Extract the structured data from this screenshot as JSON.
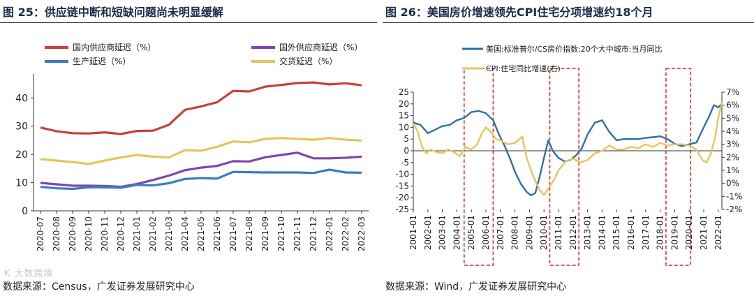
{
  "left": {
    "figure_title": "图  25：供应链中断和短缺问题尚未明显缓解",
    "source": "数据来源：Census，广发证券发展研究中心",
    "watermark": "K  大数跨境"
  },
  "right": {
    "figure_title": "图  26：美国房价增速领先CPI住宅分项增速约18个月",
    "source": "数据来源：Wind，广发证券发展研究中心"
  },
  "chart_data": [
    {
      "type": "line",
      "title": "",
      "categories": [
        "2020-07",
        "2020-08",
        "2020-09",
        "2020-10",
        "2020-11",
        "2020-12",
        "2021-01",
        "2021-02",
        "2021-03",
        "2021-04",
        "2021-05",
        "2021-06",
        "2021-07",
        "2021-08",
        "2021-09",
        "2021-10",
        "2021-11",
        "2021-12",
        "2022-01",
        "2022-02",
        "2022-03"
      ],
      "ylim": [
        0,
        47
      ],
      "yticks": [
        0,
        10,
        20,
        30,
        40
      ],
      "legend_position": "top",
      "series": [
        {
          "name": "国内供应商延迟（%）",
          "color": "#c8413b",
          "values": [
            29.5,
            28.2,
            27.5,
            27.4,
            27.8,
            27.2,
            28.3,
            28.4,
            30.5,
            35.8,
            37.0,
            38.5,
            42.5,
            42.3,
            44.0,
            44.6,
            45.3,
            45.5,
            44.8,
            45.2,
            44.5
          ]
        },
        {
          "name": "国外供应商延迟（%）",
          "color": "#7c48a8",
          "values": [
            9.9,
            9.4,
            8.9,
            8.9,
            8.8,
            8.5,
            9.5,
            10.9,
            12.5,
            14.4,
            15.3,
            15.9,
            17.6,
            17.5,
            19.0,
            19.8,
            20.6,
            18.6,
            18.6,
            18.8,
            19.2
          ]
        },
        {
          "name": "生产延迟（%）",
          "color": "#3b7cc0",
          "values": [
            8.5,
            8.0,
            7.8,
            8.3,
            8.3,
            8.2,
            9.2,
            9.0,
            9.8,
            11.3,
            11.6,
            11.4,
            13.8,
            13.7,
            13.6,
            13.6,
            13.6,
            13.4,
            14.6,
            13.6,
            13.5
          ]
        },
        {
          "name": "交货延迟（%）",
          "color": "#e6c55a",
          "values": [
            18.3,
            17.8,
            17.3,
            16.6,
            17.8,
            18.9,
            19.8,
            19.2,
            18.9,
            21.5,
            21.3,
            22.7,
            24.6,
            24.3,
            25.5,
            25.8,
            25.5,
            25.2,
            25.8,
            25.2,
            24.9
          ]
        }
      ]
    },
    {
      "type": "line",
      "title": "",
      "x_categories": [
        "2001-01",
        "2002-01",
        "2003-01",
        "2004-01",
        "2005-01",
        "2006-01",
        "2007-01",
        "2008-01",
        "2009-01",
        "2010-01",
        "2011-01",
        "2012-01",
        "2013-01",
        "2014-01",
        "2015-01",
        "2016-01",
        "2017-01",
        "2018-01",
        "2019-01",
        "2020-01",
        "2021-01",
        "2022-01"
      ],
      "x_domain": [
        2001.0,
        2022.25
      ],
      "y_left": {
        "ylim": [
          -25,
          25
        ],
        "ticks": [
          -25,
          -20,
          -15,
          -10,
          -5,
          0,
          5,
          10,
          15,
          20,
          25
        ]
      },
      "y_right": {
        "ylim": [
          -2,
          7
        ],
        "ticks": [
          "-2%",
          "-1%",
          "0%",
          "1%",
          "2%",
          "3%",
          "4%",
          "5%",
          "6%",
          "7%"
        ]
      },
      "legend_position": "top-left",
      "series": [
        {
          "name": "美国:标准普尔/CS房价指数:20个大中城市:当月同比",
          "axis": "left",
          "color": "#2f6fa6",
          "points": [
            [
              2001.0,
              12
            ],
            [
              2001.5,
              11
            ],
            [
              2002.0,
              7.5
            ],
            [
              2002.5,
              9
            ],
            [
              2003.0,
              10.5
            ],
            [
              2003.5,
              11
            ],
            [
              2004.0,
              13
            ],
            [
              2004.5,
              14
            ],
            [
              2005.0,
              16.5
            ],
            [
              2005.5,
              17
            ],
            [
              2006.0,
              16
            ],
            [
              2006.5,
              13
            ],
            [
              2006.9,
              7
            ],
            [
              2007.3,
              2
            ],
            [
              2007.7,
              -4
            ],
            [
              2008.0,
              -9
            ],
            [
              2008.4,
              -14
            ],
            [
              2008.8,
              -17.5
            ],
            [
              2009.1,
              -19
            ],
            [
              2009.4,
              -18
            ],
            [
              2009.7,
              -11
            ],
            [
              2010.0,
              -3
            ],
            [
              2010.3,
              4.5
            ],
            [
              2010.6,
              0
            ],
            [
              2011.0,
              -3
            ],
            [
              2011.4,
              -4.5
            ],
            [
              2011.8,
              -4
            ],
            [
              2012.2,
              -2
            ],
            [
              2012.6,
              1
            ],
            [
              2013.0,
              7
            ],
            [
              2013.5,
              12
            ],
            [
              2014.0,
              13
            ],
            [
              2014.5,
              8
            ],
            [
              2015.0,
              4.5
            ],
            [
              2015.5,
              5
            ],
            [
              2016.0,
              5
            ],
            [
              2016.5,
              5
            ],
            [
              2017.0,
              5.5
            ],
            [
              2017.5,
              5.8
            ],
            [
              2018.0,
              6.2
            ],
            [
              2018.5,
              5
            ],
            [
              2019.0,
              3
            ],
            [
              2019.5,
              2
            ],
            [
              2020.0,
              2.8
            ],
            [
              2020.5,
              3.5
            ],
            [
              2021.0,
              10
            ],
            [
              2021.4,
              15
            ],
            [
              2021.7,
              19.5
            ],
            [
              2022.0,
              18.5
            ],
            [
              2022.25,
              20
            ]
          ]
        },
        {
          "name": "CPI:住宅同比增速(右)",
          "axis": "right",
          "color": "#e6c55a",
          "points": [
            [
              2001.0,
              4.6
            ],
            [
              2001.3,
              4.0
            ],
            [
              2001.6,
              2.8
            ],
            [
              2001.9,
              2.3
            ],
            [
              2002.2,
              2.6
            ],
            [
              2002.6,
              2.4
            ],
            [
              2003.0,
              2.3
            ],
            [
              2003.4,
              2.6
            ],
            [
              2003.8,
              2.4
            ],
            [
              2004.2,
              2.1
            ],
            [
              2004.6,
              2.8
            ],
            [
              2005.0,
              2.6
            ],
            [
              2005.4,
              3.0
            ],
            [
              2005.7,
              3.8
            ],
            [
              2006.0,
              4.3
            ],
            [
              2006.3,
              4.0
            ],
            [
              2006.7,
              3.4
            ],
            [
              2007.0,
              3.3
            ],
            [
              2007.5,
              3.0
            ],
            [
              2008.0,
              3.1
            ],
            [
              2008.5,
              3.6
            ],
            [
              2008.8,
              2.0
            ],
            [
              2009.1,
              1.0
            ],
            [
              2009.4,
              0.2
            ],
            [
              2009.7,
              -0.5
            ],
            [
              2010.0,
              -0.9
            ],
            [
              2010.3,
              -0.4
            ],
            [
              2010.7,
              0.3
            ],
            [
              2011.0,
              1.0
            ],
            [
              2011.5,
              1.7
            ],
            [
              2012.0,
              1.9
            ],
            [
              2012.5,
              1.6
            ],
            [
              2013.0,
              1.8
            ],
            [
              2013.5,
              2.3
            ],
            [
              2014.0,
              2.5
            ],
            [
              2014.5,
              2.9
            ],
            [
              2015.0,
              2.6
            ],
            [
              2015.5,
              2.6
            ],
            [
              2016.0,
              2.8
            ],
            [
              2016.5,
              2.7
            ],
            [
              2017.0,
              3.0
            ],
            [
              2017.5,
              2.8
            ],
            [
              2018.0,
              3.1
            ],
            [
              2018.5,
              2.9
            ],
            [
              2019.0,
              3.0
            ],
            [
              2019.5,
              3.0
            ],
            [
              2020.0,
              2.9
            ],
            [
              2020.5,
              2.6
            ],
            [
              2020.9,
              1.8
            ],
            [
              2021.2,
              1.6
            ],
            [
              2021.5,
              2.3
            ],
            [
              2021.8,
              3.6
            ],
            [
              2022.0,
              5.0
            ],
            [
              2022.25,
              6.2
            ]
          ]
        }
      ],
      "annotations": [
        {
          "type": "dashed-box",
          "color": "#e02020",
          "x_range": [
            2004.5,
            2006.5
          ]
        },
        {
          "type": "dashed-box",
          "color": "#e02020",
          "x_range": [
            2010.4,
            2012.4
          ]
        },
        {
          "type": "dashed-box",
          "color": "#e02020",
          "x_range": [
            2018.4,
            2020.1
          ]
        }
      ]
    }
  ]
}
